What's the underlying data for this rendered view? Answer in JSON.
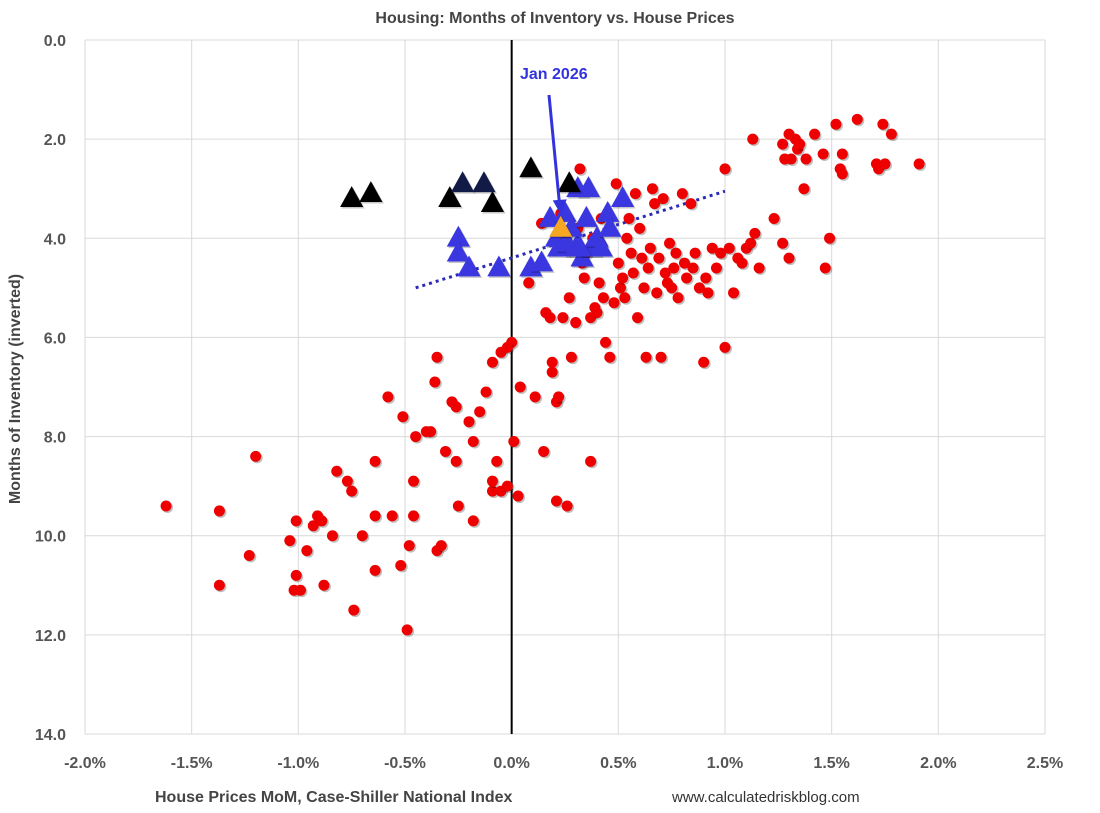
{
  "chart_data": {
    "type": "scatter",
    "title": "Housing: Months of Inventory vs. House Prices",
    "xlabel": "House Prices MoM, Case-Shiller National Index",
    "ylabel": "Months of Inventory (inverted)",
    "source": "www.calculatedriskblog.com",
    "xlim": [
      -0.02,
      0.025
    ],
    "ylim": [
      0,
      14
    ],
    "y_inverted": true,
    "x_ticks": [
      -0.02,
      -0.015,
      -0.01,
      -0.005,
      0,
      0.005,
      0.01,
      0.015,
      0.02,
      0.025
    ],
    "x_tick_labels": [
      "-2.0%",
      "-1.5%",
      "-1.0%",
      "-0.5%",
      "0.0%",
      "0.5%",
      "1.0%",
      "1.5%",
      "2.0%",
      "2.5%"
    ],
    "y_ticks": [
      0,
      2,
      4,
      6,
      8,
      10,
      12,
      14
    ],
    "y_tick_labels": [
      "0.0",
      "2.0",
      "4.0",
      "6.0",
      "8.0",
      "10.0",
      "12.0",
      "14.0"
    ],
    "grid": true,
    "colors": {
      "red": "#ee0000",
      "blue": "#3a36e0",
      "black": "#000000",
      "navy": "#111b45",
      "highlight": "#f5a623",
      "trend": "#2a2ab8",
      "annotation": "#3333dd"
    },
    "annotation": {
      "text": "Jan 2026",
      "point": [
        0.0023,
        3.8
      ]
    },
    "trendline": {
      "x": [
        -0.0045,
        0.01
      ],
      "y": [
        5.0,
        3.05
      ]
    },
    "series": [
      {
        "marker": "circle",
        "color": "red",
        "points": [
          [
            -0.0162,
            9.4
          ],
          [
            -0.0137,
            9.5
          ],
          [
            -0.0137,
            11.0
          ],
          [
            -0.012,
            8.4
          ],
          [
            -0.0123,
            10.4
          ],
          [
            -0.0104,
            10.1
          ],
          [
            -0.0101,
            9.7
          ],
          [
            -0.0101,
            10.8
          ],
          [
            -0.0102,
            11.1
          ],
          [
            -0.0099,
            11.1
          ],
          [
            -0.0096,
            10.3
          ],
          [
            -0.0093,
            9.8
          ],
          [
            -0.0091,
            9.6
          ],
          [
            -0.0089,
            9.7
          ],
          [
            -0.0088,
            11.0
          ],
          [
            -0.0084,
            10.0
          ],
          [
            -0.0082,
            8.7
          ],
          [
            -0.0077,
            8.9
          ],
          [
            -0.0075,
            9.1
          ],
          [
            -0.0074,
            11.5
          ],
          [
            -0.007,
            10.0
          ],
          [
            -0.0064,
            9.6
          ],
          [
            -0.0064,
            8.5
          ],
          [
            -0.0064,
            10.7
          ],
          [
            -0.0058,
            7.2
          ],
          [
            -0.0056,
            9.6
          ],
          [
            -0.0052,
            10.6
          ],
          [
            -0.0051,
            7.6
          ],
          [
            -0.0049,
            11.9
          ],
          [
            -0.0048,
            10.2
          ],
          [
            -0.0046,
            9.6
          ],
          [
            -0.0046,
            8.9
          ],
          [
            -0.0045,
            8.0
          ],
          [
            -0.004,
            7.9
          ],
          [
            -0.0038,
            7.9
          ],
          [
            -0.0035,
            10.3
          ],
          [
            -0.0033,
            10.2
          ],
          [
            -0.0036,
            6.9
          ],
          [
            -0.0035,
            6.4
          ],
          [
            -0.0031,
            8.3
          ],
          [
            -0.0028,
            7.3
          ],
          [
            -0.0026,
            7.4
          ],
          [
            -0.0026,
            8.5
          ],
          [
            -0.0025,
            9.4
          ],
          [
            -0.002,
            7.7
          ],
          [
            -0.0018,
            8.1
          ],
          [
            -0.0018,
            9.7
          ],
          [
            -0.0015,
            7.5
          ],
          [
            -0.0012,
            7.1
          ],
          [
            -0.0009,
            9.1
          ],
          [
            -0.0009,
            8.9
          ],
          [
            -0.0009,
            6.5
          ],
          [
            -0.0007,
            8.5
          ],
          [
            -0.0005,
            9.1
          ],
          [
            -0.0005,
            6.3
          ],
          [
            -0.0002,
            9.0
          ],
          [
            0.0,
            6.1
          ],
          [
            0.0001,
            8.1
          ],
          [
            0.0003,
            9.2
          ],
          [
            -0.0002,
            6.2
          ],
          [
            0.0004,
            7.0
          ],
          [
            0.0008,
            4.9
          ],
          [
            0.0011,
            7.2
          ],
          [
            0.0014,
            3.7
          ],
          [
            0.0015,
            8.3
          ],
          [
            0.0016,
            5.5
          ],
          [
            0.0018,
            5.6
          ],
          [
            0.0019,
            6.5
          ],
          [
            0.0019,
            6.7
          ],
          [
            0.0021,
            9.3
          ],
          [
            0.0021,
            7.3
          ],
          [
            0.0022,
            7.2
          ],
          [
            0.0022,
            3.9
          ],
          [
            0.0023,
            3.5
          ],
          [
            0.0023,
            4.0
          ],
          [
            0.0024,
            5.6
          ],
          [
            0.0026,
            9.4
          ],
          [
            0.0027,
            5.2
          ],
          [
            0.0028,
            6.4
          ],
          [
            0.0029,
            4.2
          ],
          [
            0.003,
            5.7
          ],
          [
            0.0031,
            3.8
          ],
          [
            0.0032,
            2.6
          ],
          [
            0.0033,
            4.5
          ],
          [
            0.0034,
            4.8
          ],
          [
            0.0035,
            4.3
          ],
          [
            0.0037,
            8.5
          ],
          [
            0.0037,
            5.6
          ],
          [
            0.0038,
            4.0
          ],
          [
            0.0039,
            5.4
          ],
          [
            0.004,
            5.5
          ],
          [
            0.0041,
            4.9
          ],
          [
            0.0042,
            3.6
          ],
          [
            0.0043,
            5.2
          ],
          [
            0.0044,
            6.1
          ],
          [
            0.0046,
            6.4
          ],
          [
            0.0048,
            5.3
          ],
          [
            0.0049,
            2.9
          ],
          [
            0.005,
            4.5
          ],
          [
            0.0051,
            5.0
          ],
          [
            0.0052,
            4.8
          ],
          [
            0.0053,
            5.2
          ],
          [
            0.0054,
            4.0
          ],
          [
            0.0055,
            3.6
          ],
          [
            0.0056,
            4.3
          ],
          [
            0.0057,
            4.7
          ],
          [
            0.0058,
            3.1
          ],
          [
            0.0059,
            5.6
          ],
          [
            0.006,
            3.8
          ],
          [
            0.0061,
            4.4
          ],
          [
            0.0062,
            5.0
          ],
          [
            0.0063,
            6.4
          ],
          [
            0.0064,
            4.6
          ],
          [
            0.0065,
            4.2
          ],
          [
            0.0066,
            3.0
          ],
          [
            0.0067,
            3.3
          ],
          [
            0.0068,
            5.1
          ],
          [
            0.0069,
            4.4
          ],
          [
            0.007,
            6.4
          ],
          [
            0.0071,
            3.2
          ],
          [
            0.0072,
            4.7
          ],
          [
            0.0073,
            4.9
          ],
          [
            0.0074,
            4.1
          ],
          [
            0.0075,
            5.0
          ],
          [
            0.0076,
            4.6
          ],
          [
            0.0077,
            4.3
          ],
          [
            0.0078,
            5.2
          ],
          [
            0.008,
            3.1
          ],
          [
            0.0081,
            4.5
          ],
          [
            0.0082,
            4.8
          ],
          [
            0.0084,
            3.3
          ],
          [
            0.0085,
            4.6
          ],
          [
            0.0086,
            4.3
          ],
          [
            0.0088,
            5.0
          ],
          [
            0.009,
            6.5
          ],
          [
            0.0091,
            4.8
          ],
          [
            0.0092,
            5.1
          ],
          [
            0.0094,
            4.2
          ],
          [
            0.0096,
            4.6
          ],
          [
            0.0098,
            4.3
          ],
          [
            0.01,
            2.6
          ],
          [
            0.01,
            6.2
          ],
          [
            0.0102,
            4.2
          ],
          [
            0.0104,
            5.1
          ],
          [
            0.0106,
            4.4
          ],
          [
            0.0108,
            4.5
          ],
          [
            0.011,
            4.2
          ],
          [
            0.0112,
            4.1
          ],
          [
            0.0113,
            2.0
          ],
          [
            0.0114,
            3.9
          ],
          [
            0.0116,
            4.6
          ],
          [
            0.0123,
            3.6
          ],
          [
            0.0127,
            2.1
          ],
          [
            0.0127,
            4.1
          ],
          [
            0.0128,
            2.4
          ],
          [
            0.013,
            1.9
          ],
          [
            0.013,
            4.4
          ],
          [
            0.0131,
            2.4
          ],
          [
            0.0133,
            2.0
          ],
          [
            0.0134,
            2.2
          ],
          [
            0.0135,
            2.1
          ],
          [
            0.0137,
            3.0
          ],
          [
            0.0138,
            2.4
          ],
          [
            0.0142,
            1.9
          ],
          [
            0.0146,
            2.3
          ],
          [
            0.0147,
            4.6
          ],
          [
            0.0149,
            4.0
          ],
          [
            0.0152,
            1.7
          ],
          [
            0.0154,
            2.6
          ],
          [
            0.0155,
            2.3
          ],
          [
            0.0155,
            2.7
          ],
          [
            0.0162,
            1.6
          ],
          [
            0.0171,
            2.5
          ],
          [
            0.0172,
            2.6
          ],
          [
            0.0174,
            1.7
          ],
          [
            0.0175,
            2.5
          ],
          [
            0.0178,
            1.9
          ],
          [
            0.0191,
            2.5
          ]
        ]
      },
      {
        "marker": "triangle",
        "color": "blue",
        "points": [
          [
            -0.0025,
            4.0
          ],
          [
            -0.0025,
            4.3
          ],
          [
            -0.002,
            4.6
          ],
          [
            -0.0006,
            4.6
          ],
          [
            0.0009,
            4.6
          ],
          [
            0.0014,
            4.5
          ],
          [
            0.0018,
            3.6
          ],
          [
            0.0021,
            4.0
          ],
          [
            0.0022,
            4.2
          ],
          [
            0.0025,
            3.5
          ],
          [
            0.0026,
            4.1
          ],
          [
            0.0028,
            3.8
          ],
          [
            0.003,
            4.2
          ],
          [
            0.0031,
            3.0
          ],
          [
            0.0033,
            4.4
          ],
          [
            0.0035,
            3.6
          ],
          [
            0.0036,
            3.0
          ],
          [
            0.0037,
            4.2
          ],
          [
            0.004,
            4.0
          ],
          [
            0.0042,
            4.2
          ],
          [
            0.0045,
            3.5
          ],
          [
            0.0046,
            3.8
          ],
          [
            0.0052,
            3.2
          ],
          [
            0.0032,
            4.2
          ]
        ]
      },
      {
        "marker": "triangle",
        "color": "black",
        "points": [
          [
            -0.0075,
            3.2
          ],
          [
            -0.0066,
            3.1
          ],
          [
            -0.0029,
            3.2
          ],
          [
            -0.0009,
            3.3
          ],
          [
            0.0009,
            2.6
          ],
          [
            0.0027,
            2.9
          ]
        ]
      },
      {
        "marker": "triangle",
        "color": "navy",
        "points": [
          [
            -0.0023,
            2.9
          ],
          [
            -0.0013,
            2.9
          ]
        ]
      },
      {
        "marker": "triangle",
        "color": "highlight",
        "points": [
          [
            0.0023,
            3.8
          ]
        ]
      }
    ]
  }
}
